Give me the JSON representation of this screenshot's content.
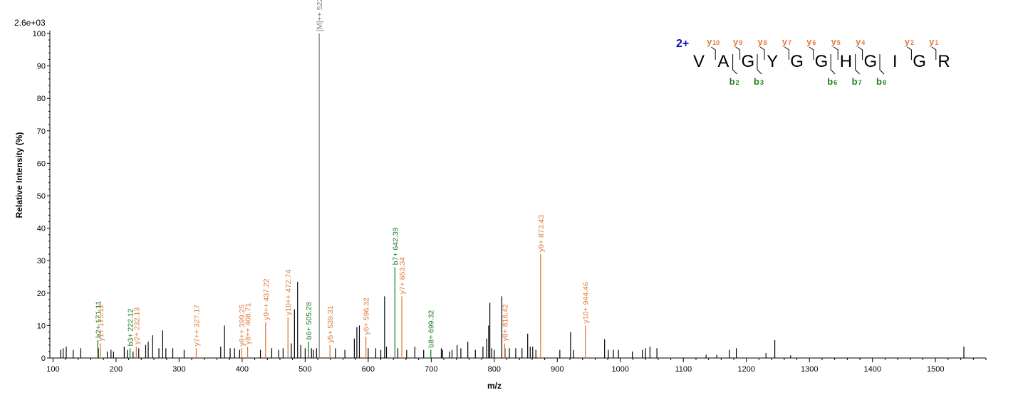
{
  "chart_data": {
    "type": "bar",
    "title": "",
    "xlabel": "m/z",
    "ylabel": "Relative  Intensity (%)",
    "max_intensity_label": "2.6e+03",
    "xlim": [
      95,
      1580
    ],
    "ylim": [
      0,
      100
    ],
    "x_ticks": [
      100,
      200,
      300,
      400,
      500,
      600,
      700,
      800,
      900,
      1000,
      1100,
      1200,
      1300,
      1400,
      1500
    ],
    "y_ticks": [
      0,
      10,
      20,
      30,
      40,
      50,
      60,
      70,
      80,
      90,
      100
    ],
    "colors": {
      "b_ion": "#1e7f1e",
      "y_ion": "#e07b3a",
      "precursor": "#808080",
      "unannotated": "#000000",
      "charge": "#1010b0"
    },
    "annotated_peaks": [
      {
        "mz": 171.11,
        "intensity": 5.5,
        "label": "b2+ 171.11",
        "ion": "b"
      },
      {
        "mz": 175.12,
        "intensity": 4.5,
        "label": "y1+ 175.12",
        "ion": "y"
      },
      {
        "mz": 222.12,
        "intensity": 3.0,
        "label": "b3+ 222.12",
        "ion": "b"
      },
      {
        "mz": 232.13,
        "intensity": 3.5,
        "label": "y2+ 232.13",
        "ion": "y"
      },
      {
        "mz": 327.17,
        "intensity": 3.0,
        "label": "y7++ 327.17",
        "ion": "y"
      },
      {
        "mz": 399.25,
        "intensity": 3.0,
        "label": "y8++ 399.25",
        "ion": "y"
      },
      {
        "mz": 408.71,
        "intensity": 3.5,
        "label": "y8++ 408.71",
        "ion": "y"
      },
      {
        "mz": 437.22,
        "intensity": 11.0,
        "label": "y9++ 437.22",
        "ion": "y"
      },
      {
        "mz": 472.74,
        "intensity": 12.5,
        "label": "y10++ 472.74",
        "ion": "y"
      },
      {
        "mz": 505.28,
        "intensity": 5.0,
        "label": "b6+ 505.28",
        "ion": "b"
      },
      {
        "mz": 522.3,
        "intensity": 100.0,
        "label": "[M]++ 522.30",
        "ion": "precursor"
      },
      {
        "mz": 539.31,
        "intensity": 4.0,
        "label": "y5+ 539.31",
        "ion": "y"
      },
      {
        "mz": 596.32,
        "intensity": 6.5,
        "label": "y6+ 596.32",
        "ion": "y"
      },
      {
        "mz": 642.39,
        "intensity": 28.0,
        "label": "b7+ 642.39",
        "ion": "b"
      },
      {
        "mz": 653.34,
        "intensity": 19.0,
        "label": "y7+ 653.34",
        "ion": "y"
      },
      {
        "mz": 699.32,
        "intensity": 2.5,
        "label": "b8+ 699.32",
        "ion": "b"
      },
      {
        "mz": 816.42,
        "intensity": 4.5,
        "label": "y8+ 816.42",
        "ion": "y"
      },
      {
        "mz": 873.43,
        "intensity": 32.0,
        "label": "y9+ 873.43",
        "ion": "y"
      },
      {
        "mz": 944.46,
        "intensity": 10.0,
        "label": "y10+ 944.46",
        "ion": "y"
      }
    ],
    "unannotated_peaks": [
      [
        112,
        2.5
      ],
      [
        116,
        3.0
      ],
      [
        121,
        3.5
      ],
      [
        132,
        2.5
      ],
      [
        144,
        3.0
      ],
      [
        172,
        3.0
      ],
      [
        186,
        2.0
      ],
      [
        192,
        2.5
      ],
      [
        196,
        2.0
      ],
      [
        213,
        3.5
      ],
      [
        218,
        2.5
      ],
      [
        227,
        2.0
      ],
      [
        236,
        3.0
      ],
      [
        247,
        4.0
      ],
      [
        251,
        5.0
      ],
      [
        258,
        7.0
      ],
      [
        268,
        3.0
      ],
      [
        274,
        8.5
      ],
      [
        279,
        3.0
      ],
      [
        290,
        3.0
      ],
      [
        308,
        2.5
      ],
      [
        366,
        3.5
      ],
      [
        372,
        10.0
      ],
      [
        381,
        3.0
      ],
      [
        388,
        3.0
      ],
      [
        396,
        2.5
      ],
      [
        429,
        2.5
      ],
      [
        447,
        3.0
      ],
      [
        458,
        2.5
      ],
      [
        465,
        3.0
      ],
      [
        478,
        4.5
      ],
      [
        483,
        15.0
      ],
      [
        488,
        23.5
      ],
      [
        493,
        4.0
      ],
      [
        500,
        3.0
      ],
      [
        510,
        3.0
      ],
      [
        513,
        2.5
      ],
      [
        518,
        3.0
      ],
      [
        548,
        3.0
      ],
      [
        563,
        2.5
      ],
      [
        578,
        6.0
      ],
      [
        582,
        9.5
      ],
      [
        586,
        10.0
      ],
      [
        600,
        3.0
      ],
      [
        612,
        3.0
      ],
      [
        620,
        2.5
      ],
      [
        626,
        19.0
      ],
      [
        629,
        3.5
      ],
      [
        647,
        3.0
      ],
      [
        661,
        2.5
      ],
      [
        674,
        3.5
      ],
      [
        688,
        2.5
      ],
      [
        716,
        3.0
      ],
      [
        718,
        2.5
      ],
      [
        729,
        2.0
      ],
      [
        733,
        2.5
      ],
      [
        741,
        4.0
      ],
      [
        747,
        3.0
      ],
      [
        758,
        5.0
      ],
      [
        770,
        2.5
      ],
      [
        782,
        3.5
      ],
      [
        788,
        6.0
      ],
      [
        791,
        10.0
      ],
      [
        793,
        17.0
      ],
      [
        796,
        3.0
      ],
      [
        800,
        2.5
      ],
      [
        812,
        19.0
      ],
      [
        817,
        3.0
      ],
      [
        824,
        3.0
      ],
      [
        834,
        3.0
      ],
      [
        844,
        3.0
      ],
      [
        853,
        7.5
      ],
      [
        857,
        3.5
      ],
      [
        861,
        3.5
      ],
      [
        866,
        2.5
      ],
      [
        904,
        2.5
      ],
      [
        921,
        8.0
      ],
      [
        926,
        2.5
      ],
      [
        975,
        5.8
      ],
      [
        981,
        2.5
      ],
      [
        989,
        2.5
      ],
      [
        997,
        2.5
      ],
      [
        1019,
        2.0
      ],
      [
        1035,
        2.5
      ],
      [
        1040,
        3.0
      ],
      [
        1047,
        3.5
      ],
      [
        1058,
        3.0
      ],
      [
        1136,
        1.0
      ],
      [
        1153,
        1.0
      ],
      [
        1173,
        2.5
      ],
      [
        1184,
        3.0
      ],
      [
        1231,
        1.5
      ],
      [
        1245,
        5.5
      ],
      [
        1270,
        0.8
      ],
      [
        1545,
        3.5
      ]
    ]
  },
  "sequence_panel": {
    "charge": "2+",
    "residues": [
      "V",
      "A",
      "G",
      "Y",
      "G",
      "G",
      "H",
      "G",
      "I",
      "G",
      "R"
    ],
    "y_ions": [
      {
        "label": "y",
        "num": "10",
        "after": 1
      },
      {
        "label": "y",
        "num": "9",
        "after": 2
      },
      {
        "label": "y",
        "num": "8",
        "after": 3
      },
      {
        "label": "y",
        "num": "7",
        "after": 4
      },
      {
        "label": "y",
        "num": "6",
        "after": 5
      },
      {
        "label": "y",
        "num": "5",
        "after": 6
      },
      {
        "label": "y",
        "num": "4",
        "after": 7
      },
      {
        "label": "y",
        "num": "2",
        "after": 9
      },
      {
        "label": "y",
        "num": "1",
        "after": 10
      }
    ],
    "b_ions": [
      {
        "label": "b",
        "num": "2",
        "after": 2
      },
      {
        "label": "b",
        "num": "3",
        "after": 3
      },
      {
        "label": "b",
        "num": "6",
        "after": 6
      },
      {
        "label": "b",
        "num": "7",
        "after": 7
      },
      {
        "label": "b",
        "num": "8",
        "after": 8
      }
    ]
  }
}
